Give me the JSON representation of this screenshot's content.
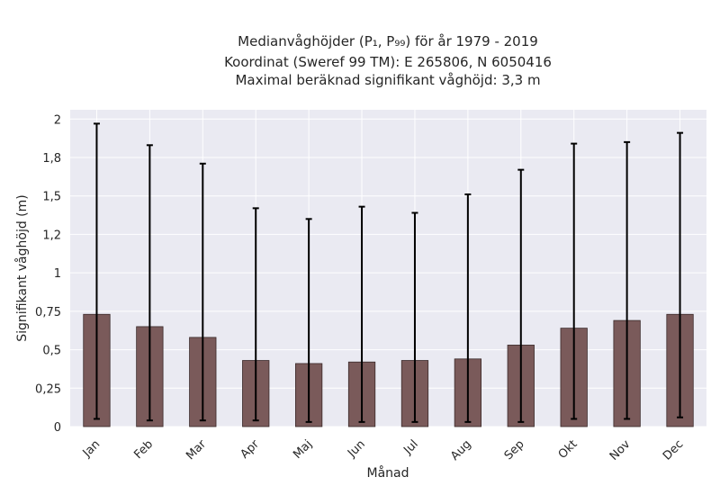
{
  "chart_data": {
    "type": "bar",
    "title_lines": [
      "Medianvåghöjder (P₁, P₉₉) för år 1979 - 2019",
      "Koordinat (Sweref 99 TM): E 265806, N 6050416",
      "Maximal beräknad signifikant våghöjd: 3,3 m"
    ],
    "xlabel": "Månad",
    "ylabel": "Signifikant våghöjd (m)",
    "categories": [
      "Jan",
      "Feb",
      "Mar",
      "Apr",
      "Maj",
      "Jun",
      "Jul",
      "Aug",
      "Sep",
      "Okt",
      "Nov",
      "Dec"
    ],
    "values": [
      0.73,
      0.65,
      0.58,
      0.43,
      0.41,
      0.42,
      0.43,
      0.44,
      0.53,
      0.64,
      0.69,
      0.73
    ],
    "error_low": [
      0.05,
      0.04,
      0.04,
      0.04,
      0.03,
      0.03,
      0.03,
      0.03,
      0.03,
      0.05,
      0.05,
      0.06
    ],
    "error_high": [
      1.97,
      1.83,
      1.71,
      1.42,
      1.35,
      1.43,
      1.39,
      1.51,
      1.67,
      1.84,
      1.85,
      1.91
    ],
    "ylim": [
      0,
      2.06
    ],
    "yticks": [
      0,
      0.25,
      0.5,
      0.75,
      1,
      1.25,
      1.5,
      1.75,
      2
    ],
    "ytick_labels": [
      "0",
      "0,25",
      "0,5",
      "0,75",
      "1",
      "1,2",
      "1,5",
      "1,8",
      "2"
    ],
    "grid": true,
    "colors": {
      "bar": "#7a5a5a",
      "bar_edge": "#3a2a2a",
      "error_bar": "#000000",
      "plot_background": "#eaeaf2",
      "grid": "#ffffff"
    }
  }
}
